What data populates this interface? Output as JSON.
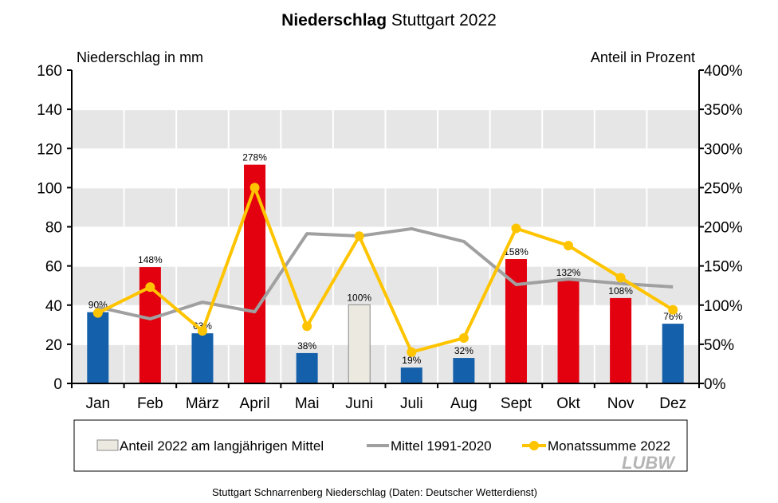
{
  "chart_data": {
    "type": "bar",
    "title_bold": "Niederschlag",
    "title_rest": " Stuttgart 2022",
    "ylabel_left": "Niederschlag  in mm",
    "ylabel_right": "Anteil  in Prozent",
    "ylim_left": [
      0,
      160
    ],
    "ylim_right": [
      0,
      400
    ],
    "yticks_left": [
      "0",
      "20",
      "40",
      "60",
      "80",
      "100",
      "120",
      "140",
      "160"
    ],
    "yticks_right": [
      "0%",
      "50%",
      "100%",
      "150%",
      "200%",
      "250%",
      "300%",
      "350%",
      "400%"
    ],
    "categories": [
      "Jan",
      "Feb",
      "März",
      "April",
      "Mai",
      "Juni",
      "Juli",
      "Aug",
      "Sept",
      "Okt",
      "Nov",
      "Dez"
    ],
    "bars": {
      "values_mm": [
        36.4,
        59.4,
        25.6,
        111.7,
        15.5,
        40.2,
        8.1,
        13,
        63.5,
        53,
        43.6,
        30.5
      ],
      "labels": [
        "90%",
        "148%",
        "63%",
        "278%",
        "38%",
        "100%",
        "19%",
        "32%",
        "158%",
        "132%",
        "108%",
        "76%"
      ],
      "colors": [
        "#1560aa",
        "#e3000f",
        "#1560aa",
        "#e3000f",
        "#1560aa",
        "#eceae0",
        "#1560aa",
        "#1560aa",
        "#e3000f",
        "#e3000f",
        "#e3000f",
        "#1560aa"
      ]
    },
    "series": [
      {
        "name": "Mittel 1991-2020",
        "axis": "left",
        "color": "#a0a0a0",
        "values": [
          39,
          33,
          41.5,
          36.6,
          76.5,
          75.3,
          79,
          72.5,
          50.5,
          53.3,
          51,
          49.3
        ]
      },
      {
        "name": "Monatssumme 2022",
        "axis": "right",
        "color": "#ffc400",
        "values": [
          90,
          123,
          67,
          250,
          73,
          188,
          40,
          58,
          198,
          176,
          135,
          94
        ]
      }
    ],
    "legend": [
      "Anteil 2022 am langjährigen Mittel",
      "Mittel 1991-2020",
      "Monatssumme 2022"
    ],
    "legend_placement": "bottom",
    "grid": true,
    "logo": "LUBW",
    "footnote": "Stuttgart Schnarrenberg Niederschlag (Daten: Deutscher Wetterdienst)"
  }
}
